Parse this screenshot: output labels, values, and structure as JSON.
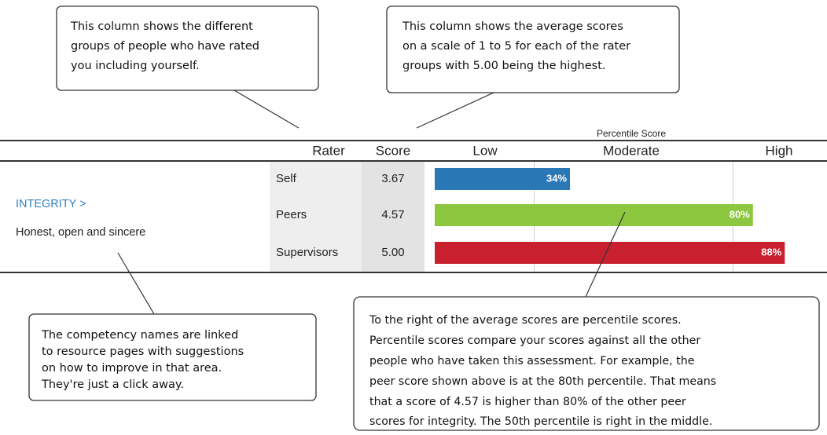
{
  "callouts": [
    {
      "lines": [
        "This column shows the different",
        "groups of people who have rated",
        "you including yourself."
      ]
    },
    {
      "lines": [
        "This column shows the average scores",
        "on a scale of 1 to 5 for each of the rater",
        "groups with 5.00 being the highest."
      ]
    },
    {
      "lines": [
        "The competency names are linked",
        "to resource pages with suggestions",
        "on how to improve in that area.",
        "They're just a click away."
      ]
    },
    {
      "lines": [
        "To the right of the average scores are percentile scores.",
        "Percentile scores compare your scores against all the other",
        "people who have taken this assessment. For example, the",
        "peer score shown above is at the 80th percentile. That means",
        "that a score of 4.57 is higher than 80% of the other peer",
        "scores for integrity. The 50th percentile is right in the middle."
      ]
    }
  ],
  "table": {
    "percentile_title": "Percentile Score",
    "headers": [
      "Rater",
      "Score",
      "Low",
      "Moderate",
      "High"
    ],
    "competency": {
      "name": "INTEGRITY >",
      "description": "Honest, open and sincere"
    },
    "rows": [
      {
        "rater": "Self",
        "score": "3.67",
        "percentile": 34,
        "percentile_label": "34%",
        "color": "#2a77b6"
      },
      {
        "rater": "Peers",
        "score": "4.57",
        "percentile": 80,
        "percentile_label": "80%",
        "color": "#8dc63f"
      },
      {
        "rater": "Supervisors",
        "score": "5.00",
        "percentile": 88,
        "percentile_label": "88%",
        "color": "#c8202f"
      }
    ],
    "xlim": [
      0,
      100
    ],
    "gridlines": [
      25,
      75
    ]
  }
}
